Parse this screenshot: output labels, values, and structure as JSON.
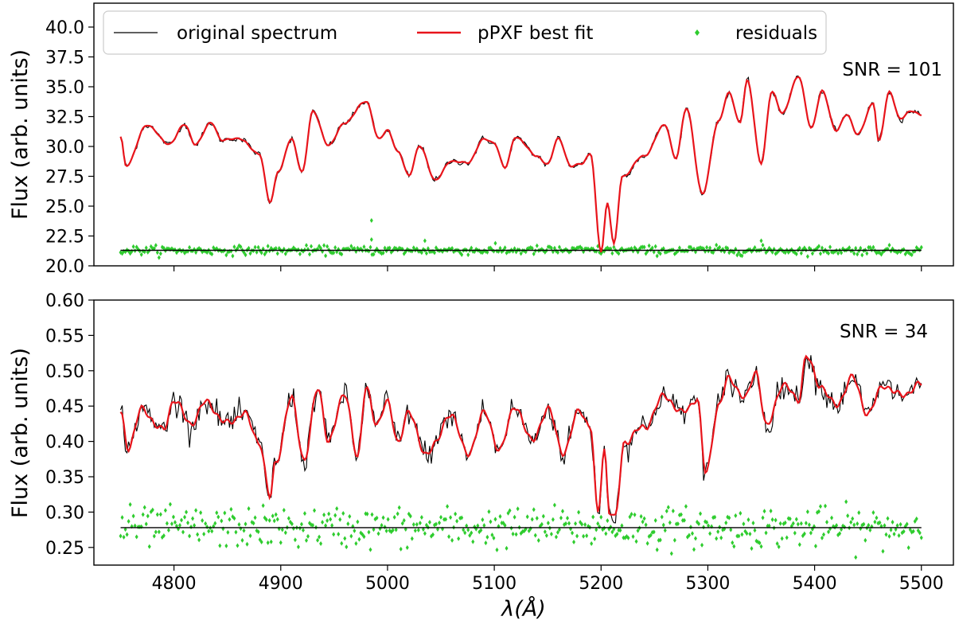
{
  "chart_data": {
    "type": "line",
    "colors": {
      "original": "#000000",
      "fit": "#e8141b",
      "residuals": "#2ecc2e",
      "zero": "#000000"
    },
    "legend": {
      "placement": "top",
      "entries": [
        "original spectrum",
        "pPXF best fit",
        "residuals"
      ]
    },
    "xlabel": "λ(Å)",
    "xlim": [
      4725,
      5530
    ],
    "xticks": [
      4800,
      4900,
      5000,
      5100,
      5200,
      5300,
      5400,
      5500
    ],
    "xtick_labels": [
      "4800",
      "4900",
      "5000",
      "5100",
      "5200",
      "5300",
      "5400",
      "5500"
    ],
    "panels": [
      {
        "id": "top",
        "ylabel": "Flux (arb. units)",
        "ylim": [
          20.0,
          42.0
        ],
        "yticks": [
          20.0,
          22.5,
          25.0,
          27.5,
          30.0,
          32.5,
          35.0,
          37.5,
          40.0
        ],
        "ytick_labels": [
          "20.0",
          "22.5",
          "25.0",
          "27.5",
          "30.0",
          "32.5",
          "35.0",
          "37.5",
          "40.0"
        ],
        "annotation": "SNR = 101",
        "residual_baseline": 21.3,
        "residual_sigma": 0.18,
        "noise": 0.12,
        "fit_key_points": [
          [
            4750,
            30.8
          ],
          [
            4755,
            28.4
          ],
          [
            4775,
            31.8
          ],
          [
            4795,
            30.2
          ],
          [
            4810,
            31.8
          ],
          [
            4820,
            30.2
          ],
          [
            4835,
            32.0
          ],
          [
            4845,
            30.5
          ],
          [
            4860,
            30.7
          ],
          [
            4880,
            29.4
          ],
          [
            4890,
            25.3
          ],
          [
            4898,
            28.0
          ],
          [
            4910,
            30.6
          ],
          [
            4920,
            27.9
          ],
          [
            4930,
            32.9
          ],
          [
            4945,
            30.1
          ],
          [
            4960,
            32.0
          ],
          [
            4980,
            33.8
          ],
          [
            4992,
            30.6
          ],
          [
            5000,
            31.4
          ],
          [
            5010,
            29.5
          ],
          [
            5020,
            27.6
          ],
          [
            5030,
            30.0
          ],
          [
            5045,
            27.2
          ],
          [
            5060,
            28.8
          ],
          [
            5075,
            28.6
          ],
          [
            5090,
            30.6
          ],
          [
            5100,
            30.3
          ],
          [
            5110,
            28.2
          ],
          [
            5120,
            30.8
          ],
          [
            5140,
            29.2
          ],
          [
            5150,
            28.5
          ],
          [
            5160,
            30.7
          ],
          [
            5172,
            28.3
          ],
          [
            5182,
            28.6
          ],
          [
            5190,
            29.4
          ],
          [
            5200,
            21.2
          ],
          [
            5206,
            25.3
          ],
          [
            5212,
            21.8
          ],
          [
            5220,
            27.5
          ],
          [
            5240,
            29.2
          ],
          [
            5260,
            31.8
          ],
          [
            5270,
            29.0
          ],
          [
            5280,
            33.2
          ],
          [
            5295,
            26.0
          ],
          [
            5310,
            32.1
          ],
          [
            5320,
            34.5
          ],
          [
            5330,
            32.0
          ],
          [
            5337,
            35.5
          ],
          [
            5350,
            28.6
          ],
          [
            5360,
            34.6
          ],
          [
            5370,
            32.8
          ],
          [
            5385,
            35.9
          ],
          [
            5397,
            31.5
          ],
          [
            5407,
            34.7
          ],
          [
            5420,
            31.3
          ],
          [
            5430,
            32.7
          ],
          [
            5440,
            31.0
          ],
          [
            5455,
            33.6
          ],
          [
            5460,
            30.4
          ],
          [
            5470,
            34.6
          ],
          [
            5480,
            32.3
          ],
          [
            5490,
            33.0
          ],
          [
            5500,
            32.6
          ]
        ]
      },
      {
        "id": "bottom",
        "ylabel": "Flux (arb. units)",
        "ylim": [
          0.225,
          0.6
        ],
        "yticks": [
          0.25,
          0.3,
          0.35,
          0.4,
          0.45,
          0.5,
          0.55,
          0.6
        ],
        "ytick_labels": [
          "0.25",
          "0.30",
          "0.35",
          "0.40",
          "0.45",
          "0.50",
          "0.55",
          "0.60"
        ],
        "annotation": "SNR = 34",
        "residual_baseline": 0.278,
        "residual_sigma": 0.014,
        "noise": 0.009,
        "fit_key_points": [
          [
            4750,
            0.44
          ],
          [
            4757,
            0.392
          ],
          [
            4770,
            0.445
          ],
          [
            4790,
            0.415
          ],
          [
            4800,
            0.46
          ],
          [
            4815,
            0.425
          ],
          [
            4830,
            0.455
          ],
          [
            4850,
            0.425
          ],
          [
            4865,
            0.44
          ],
          [
            4880,
            0.4
          ],
          [
            4890,
            0.32
          ],
          [
            4895,
            0.37
          ],
          [
            4910,
            0.46
          ],
          [
            4922,
            0.375
          ],
          [
            4935,
            0.475
          ],
          [
            4945,
            0.4
          ],
          [
            4960,
            0.47
          ],
          [
            4972,
            0.375
          ],
          [
            4980,
            0.48
          ],
          [
            4990,
            0.42
          ],
          [
            5000,
            0.46
          ],
          [
            5010,
            0.395
          ],
          [
            5020,
            0.445
          ],
          [
            5035,
            0.38
          ],
          [
            5045,
            0.4
          ],
          [
            5060,
            0.44
          ],
          [
            5075,
            0.38
          ],
          [
            5090,
            0.44
          ],
          [
            5105,
            0.39
          ],
          [
            5120,
            0.45
          ],
          [
            5135,
            0.4
          ],
          [
            5150,
            0.445
          ],
          [
            5165,
            0.385
          ],
          [
            5180,
            0.445
          ],
          [
            5190,
            0.42
          ],
          [
            5197,
            0.298
          ],
          [
            5203,
            0.39
          ],
          [
            5208,
            0.3
          ],
          [
            5213,
            0.29
          ],
          [
            5222,
            0.4
          ],
          [
            5240,
            0.42
          ],
          [
            5260,
            0.465
          ],
          [
            5275,
            0.44
          ],
          [
            5290,
            0.46
          ],
          [
            5298,
            0.355
          ],
          [
            5310,
            0.45
          ],
          [
            5320,
            0.49
          ],
          [
            5335,
            0.46
          ],
          [
            5345,
            0.5
          ],
          [
            5355,
            0.42
          ],
          [
            5370,
            0.48
          ],
          [
            5385,
            0.46
          ],
          [
            5392,
            0.52
          ],
          [
            5405,
            0.48
          ],
          [
            5420,
            0.45
          ],
          [
            5435,
            0.49
          ],
          [
            5450,
            0.44
          ],
          [
            5465,
            0.48
          ],
          [
            5480,
            0.465
          ],
          [
            5500,
            0.48
          ]
        ]
      }
    ]
  }
}
